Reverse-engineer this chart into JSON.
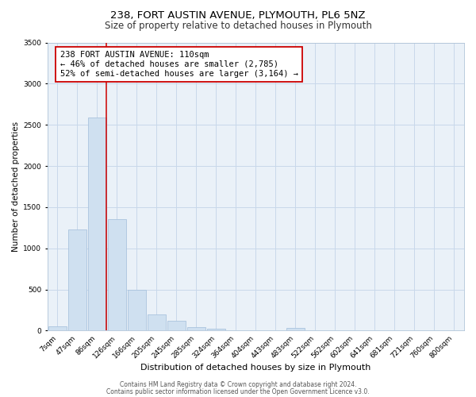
{
  "title": "238, FORT AUSTIN AVENUE, PLYMOUTH, PL6 5NZ",
  "subtitle": "Size of property relative to detached houses in Plymouth",
  "xlabel": "Distribution of detached houses by size in Plymouth",
  "ylabel": "Number of detached properties",
  "bar_color": "#cfe0f0",
  "bar_edge_color": "#aac4de",
  "grid_color": "#c8d8ea",
  "background_color": "#eaf1f8",
  "ylim": [
    0,
    3500
  ],
  "yticks": [
    0,
    500,
    1000,
    1500,
    2000,
    2500,
    3000,
    3500
  ],
  "bin_labels": [
    "7sqm",
    "47sqm",
    "86sqm",
    "126sqm",
    "166sqm",
    "205sqm",
    "245sqm",
    "285sqm",
    "324sqm",
    "364sqm",
    "404sqm",
    "443sqm",
    "483sqm",
    "522sqm",
    "562sqm",
    "602sqm",
    "641sqm",
    "681sqm",
    "721sqm",
    "760sqm",
    "800sqm"
  ],
  "bar_heights": [
    50,
    1230,
    2590,
    1350,
    500,
    195,
    115,
    40,
    25,
    5,
    5,
    5,
    30,
    5,
    0,
    0,
    0,
    0,
    0,
    0,
    0
  ],
  "vline_color": "#cc0000",
  "annotation_title": "238 FORT AUSTIN AVENUE: 110sqm",
  "annotation_line1": "← 46% of detached houses are smaller (2,785)",
  "annotation_line2": "52% of semi-detached houses are larger (3,164) →",
  "annotation_box_color": "#ffffff",
  "annotation_edge_color": "#cc0000",
  "footer_line1": "Contains HM Land Registry data © Crown copyright and database right 2024.",
  "footer_line2": "Contains public sector information licensed under the Open Government Licence v3.0.",
  "title_fontsize": 9.5,
  "subtitle_fontsize": 8.5,
  "xlabel_fontsize": 8,
  "ylabel_fontsize": 7.5,
  "tick_fontsize": 6.5,
  "annotation_fontsize": 7.5,
  "footer_fontsize": 5.5
}
